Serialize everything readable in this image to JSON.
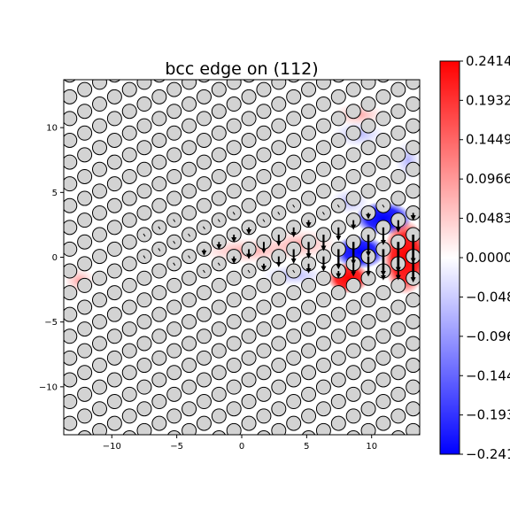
{
  "chart_data": {
    "type": "scatter",
    "title": "bcc edge on (112)",
    "xlabel": "",
    "ylabel": "",
    "xlim": [
      -13.7,
      13.7
    ],
    "ylim": [
      -13.7,
      13.7
    ],
    "xticks": [
      -10,
      -5,
      0,
      5,
      10
    ],
    "yticks": [
      -10,
      -5,
      0,
      5,
      10
    ],
    "grid": false,
    "atoms": {
      "description_free": true,
      "columns_x": [
        -13.24,
        -12.09,
        -10.94,
        -9.79,
        -8.64,
        -7.5,
        -6.35,
        -5.2,
        -4.05,
        -2.9,
        -1.75,
        -0.6,
        0.55,
        1.7,
        2.85,
        4.0,
        5.15,
        6.3,
        7.45,
        8.6,
        9.75,
        10.9,
        12.05,
        13.2
      ],
      "row_spacing_y": 1.12,
      "y_min": -13.2,
      "y_max": 13.2,
      "rows_per_column": 3,
      "fill": "#d3d3d3",
      "edge": "#000000"
    },
    "displacement_field": {
      "max_arrow_dy": -1.3,
      "core_x": 10.0,
      "core_y": 0.0
    },
    "colorbar": {
      "cmap": "bwr",
      "vmin": -0.2414,
      "vmax": 0.2414,
      "tick_labels": [
        "0.2414",
        "0.1932",
        "0.1449",
        "0.0966",
        "0.0483",
        "0.0000",
        "-0.0483",
        "-0.0966",
        "-0.1449",
        "-0.1932",
        "-0.2414"
      ],
      "tick_values": [
        0.2414,
        0.1932,
        0.1449,
        0.0966,
        0.0483,
        0.0,
        -0.0483,
        -0.0966,
        -0.1449,
        -0.1932,
        -0.2414
      ]
    },
    "colors": {
      "positive": "#ff0000",
      "negative": "#0000ff",
      "zero": "#ffffff"
    }
  }
}
